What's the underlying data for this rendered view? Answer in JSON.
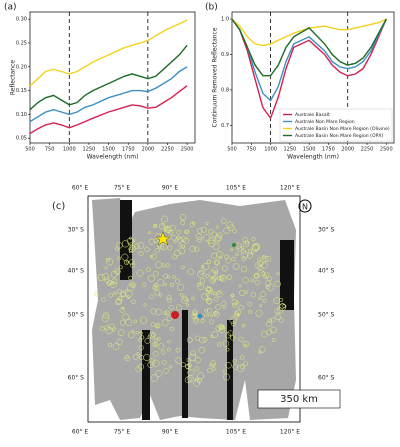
{
  "chart_data": [
    {
      "type": "line",
      "label": "(a)",
      "xlabel": "Wavelength (nm)",
      "ylabel": "Reflectance",
      "x": [
        500,
        600,
        700,
        800,
        900,
        1000,
        1100,
        1200,
        1300,
        1500,
        1700,
        1800,
        1900,
        2000,
        2100,
        2200,
        2300,
        2400,
        2500
      ],
      "xlim": [
        500,
        2600
      ],
      "xticks": [
        500,
        750,
        1000,
        1250,
        1500,
        1750,
        2000,
        2250,
        2500
      ],
      "ylim": [
        0.04,
        0.315
      ],
      "yticks": [
        0.05,
        {
          "value": 0.1,
          "label": "0.10"
        },
        0.15,
        {
          "value": 0.2,
          "label": "0.20"
        },
        0.25,
        {
          "value": 0.3,
          "label": "0.30"
        }
      ],
      "vlines": [
        1000,
        2000
      ],
      "series": [
        {
          "color": "#d6204f",
          "values": [
            0.06,
            0.07,
            0.078,
            0.082,
            0.078,
            0.072,
            0.078,
            0.085,
            0.092,
            0.105,
            0.115,
            0.12,
            0.118,
            0.113,
            0.115,
            0.125,
            0.135,
            0.148,
            0.16
          ]
        },
        {
          "color": "#3b8fc4",
          "values": [
            0.085,
            0.095,
            0.105,
            0.11,
            0.105,
            0.1,
            0.105,
            0.115,
            0.12,
            0.135,
            0.145,
            0.15,
            0.15,
            0.148,
            0.155,
            0.165,
            0.175,
            0.19,
            0.2
          ]
        },
        {
          "color": "#f2d21c",
          "values": [
            0.16,
            0.175,
            0.19,
            0.195,
            0.19,
            0.185,
            0.19,
            0.2,
            0.21,
            0.225,
            0.24,
            0.245,
            0.25,
            0.255,
            0.265,
            0.275,
            0.283,
            0.29,
            0.298
          ]
        },
        {
          "color": "#1c6b26",
          "values": [
            0.11,
            0.125,
            0.135,
            0.14,
            0.13,
            0.12,
            0.125,
            0.14,
            0.15,
            0.165,
            0.18,
            0.185,
            0.18,
            0.175,
            0.18,
            0.195,
            0.21,
            0.225,
            0.245
          ]
        }
      ]
    },
    {
      "type": "line",
      "label": "(b)",
      "xlabel": "Wavelength (nm)",
      "ylabel": "Continuum Removed Reflectance",
      "x": [
        500,
        600,
        700,
        800,
        900,
        1000,
        1100,
        1200,
        1300,
        1500,
        1700,
        1800,
        1900,
        2000,
        2100,
        2200,
        2300,
        2400,
        2500
      ],
      "xlim": [
        500,
        2600
      ],
      "xticks": [
        500,
        750,
        1000,
        1250,
        1500,
        1750,
        2000,
        2250,
        2500
      ],
      "ylim": [
        0.65,
        1.02
      ],
      "yticks": [
        0.7,
        0.8,
        0.9,
        {
          "value": 1,
          "label": "1.0"
        }
      ],
      "vlines": [
        1000,
        2000
      ],
      "legend": "lower right",
      "series": [
        {
          "name": "Australe Basalt",
          "color": "#d6204f",
          "values": [
            1.0,
            0.97,
            0.91,
            0.83,
            0.75,
            0.72,
            0.78,
            0.86,
            0.92,
            0.94,
            0.9,
            0.87,
            0.85,
            0.84,
            0.845,
            0.86,
            0.9,
            0.95,
            1.0
          ]
        },
        {
          "name": "Australe Non Mare Region",
          "color": "#3b8fc4",
          "values": [
            1.0,
            0.97,
            0.92,
            0.85,
            0.79,
            0.77,
            0.81,
            0.88,
            0.93,
            0.95,
            0.91,
            0.88,
            0.865,
            0.86,
            0.865,
            0.88,
            0.91,
            0.955,
            1.0
          ]
        },
        {
          "name": "Australe Basin Non Mare Region (Olivine)",
          "color": "#f2d21c",
          "values": [
            1.0,
            0.98,
            0.95,
            0.93,
            0.925,
            0.93,
            0.94,
            0.95,
            0.96,
            0.975,
            0.98,
            0.975,
            0.97,
            0.97,
            0.975,
            0.98,
            0.985,
            0.99,
            1.0
          ]
        },
        {
          "name": "Australe Basin Non Mare Region (OPX)",
          "color": "#1c6b26",
          "values": [
            1.0,
            0.97,
            0.92,
            0.87,
            0.84,
            0.84,
            0.87,
            0.92,
            0.95,
            0.975,
            0.93,
            0.9,
            0.88,
            0.87,
            0.875,
            0.89,
            0.92,
            0.96,
            1.0
          ]
        }
      ]
    }
  ],
  "map": {
    "label": "(c)",
    "lon_labels": [
      "60° E",
      "75° E",
      "90° E",
      "105° E",
      "120° E"
    ],
    "lat_labels": [
      "30° S",
      "40° S",
      "50° S",
      "60° S"
    ],
    "scale": "350 km",
    "north": "N"
  }
}
